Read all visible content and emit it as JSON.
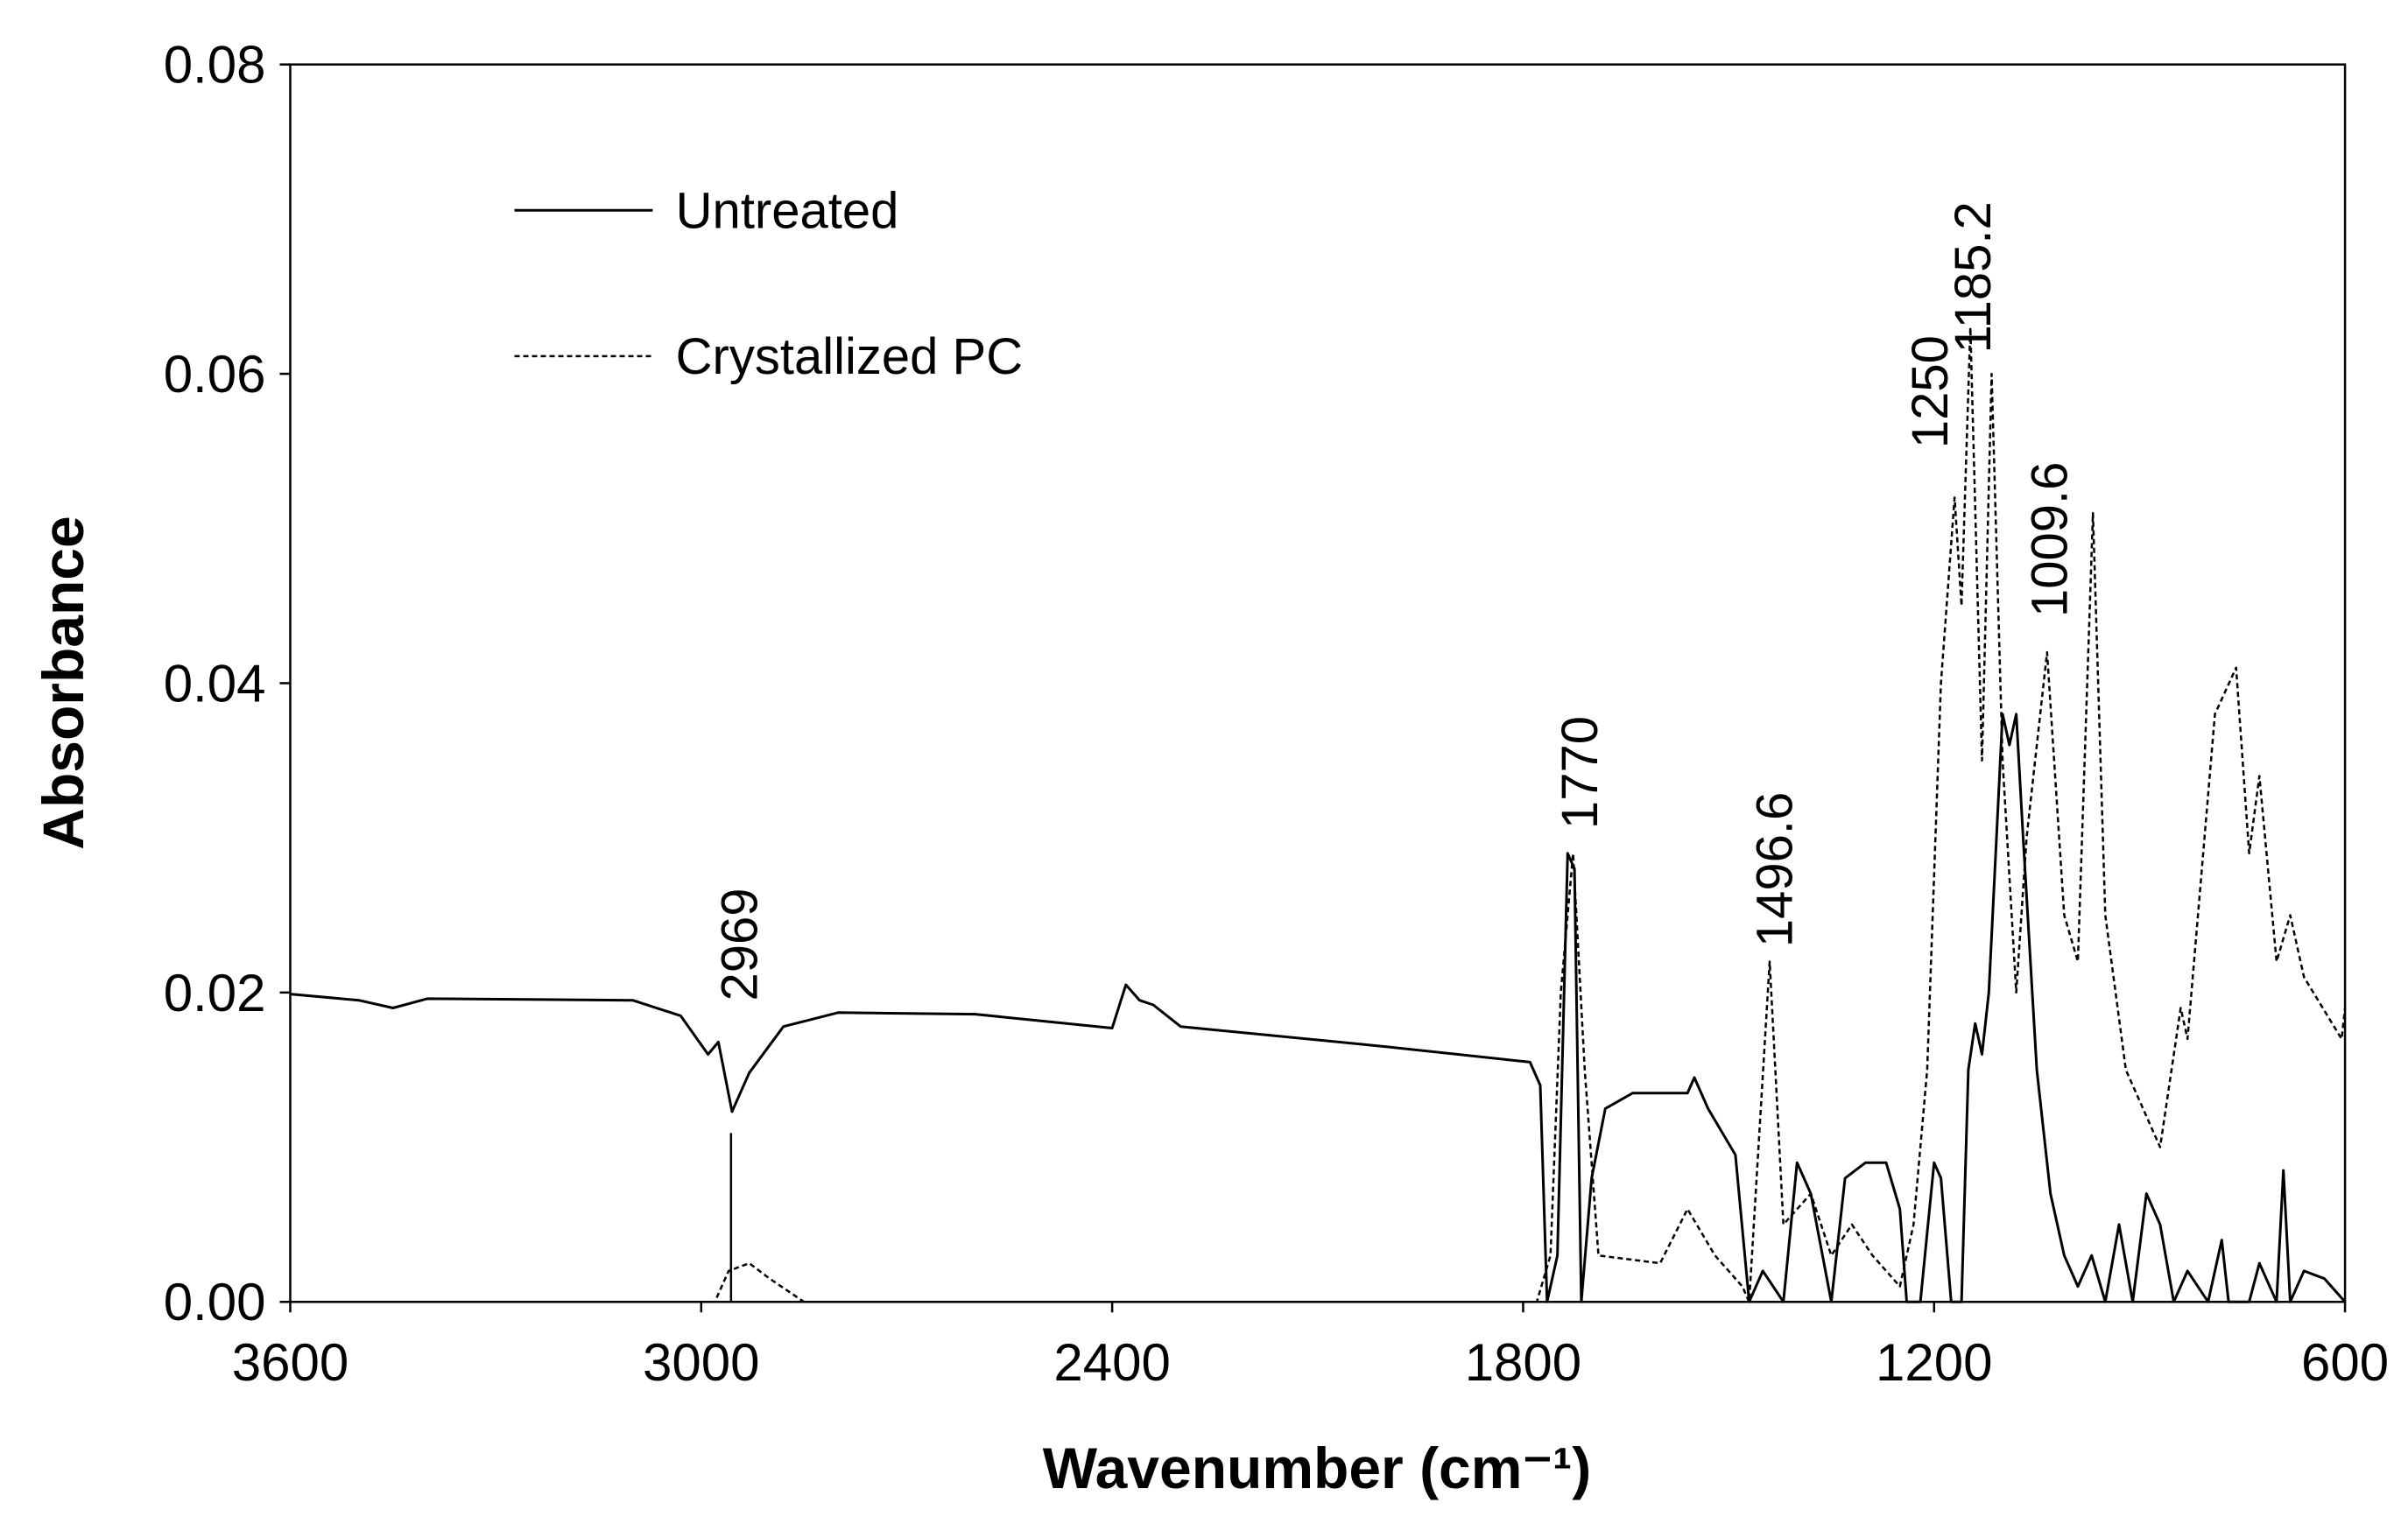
{
  "chart_data": {
    "type": "line",
    "xlabel": "Wavenumber (cm⁻¹)",
    "ylabel": "Absorbance",
    "xlim": [
      3600,
      600
    ],
    "ylim": [
      0,
      0.08
    ],
    "xticks": [
      3600,
      3000,
      2400,
      1800,
      1200,
      600
    ],
    "yticks": [
      {
        "value": 0,
        "label": "0.00"
      },
      {
        "value": 0.02,
        "label": "0.02"
      },
      {
        "value": 0.04,
        "label": "0.04"
      },
      {
        "value": 0.06,
        "label": "0.06"
      },
      {
        "value": 0.08,
        "label": "0.08"
      }
    ],
    "legend": "upper left",
    "series": [
      {
        "name": "Untreated",
        "color": "#000000",
        "style": "solid",
        "x": [
          3600,
          3500,
          3450,
          3400,
          3100,
          3030,
          2990,
          2975,
          2955,
          2930,
          2880,
          2800,
          2600,
          2400,
          2380,
          2360,
          2340,
          2300,
          2000,
          1790,
          1775,
          1765,
          1750,
          1735,
          1725,
          1715,
          1700,
          1680,
          1640,
          1560,
          1550,
          1530,
          1490,
          1470,
          1450,
          1420,
          1400,
          1380,
          1350,
          1330,
          1300,
          1270,
          1250,
          1240,
          1220,
          1200,
          1190,
          1175,
          1160,
          1150,
          1140,
          1130,
          1120,
          1100,
          1090,
          1080,
          1070,
          1050,
          1030,
          1010,
          990,
          970,
          950,
          930,
          910,
          890,
          870,
          850,
          830,
          800,
          780,
          770,
          740,
          725,
          700,
          690,
          680,
          660,
          630,
          600
        ],
        "values": [
          0.0199,
          0.0195,
          0.019,
          0.0196,
          0.0195,
          0.0185,
          0.016,
          0.0168,
          0.0123,
          0.0148,
          0.0178,
          0.0187,
          0.0186,
          0.0177,
          0.0205,
          0.0195,
          0.0192,
          0.0178,
          0.0165,
          0.0155,
          0.014,
          0.0,
          0.003,
          0.029,
          0.028,
          0.0,
          0.008,
          0.0125,
          0.0135,
          0.0135,
          0.0145,
          0.0125,
          0.0095,
          0.0,
          0.002,
          0.0,
          0.009,
          0.007,
          0.0,
          0.008,
          0.009,
          0.009,
          0.006,
          0.0,
          0.0,
          0.009,
          0.008,
          0.0,
          0.0,
          0.015,
          0.018,
          0.016,
          0.02,
          0.038,
          0.036,
          0.038,
          0.03,
          0.015,
          0.007,
          0.003,
          0.001,
          0.003,
          0.0,
          0.005,
          0.0,
          0.007,
          0.005,
          0.0,
          0.002,
          0.0,
          0.004,
          0.0,
          0.0,
          0.0025,
          0.0,
          0.0085,
          0.0,
          0.002,
          0.0015,
          0.0
        ]
      },
      {
        "name": "Crystallized PC",
        "color": "#000000",
        "style": "dashed",
        "x": [
          3600,
          2980,
          2960,
          2930,
          2900,
          2850,
          1780,
          1760,
          1745,
          1727,
          1710,
          1690,
          1600,
          1560,
          1520,
          1480,
          1470,
          1440,
          1420,
          1380,
          1350,
          1320,
          1290,
          1250,
          1230,
          1210,
          1190,
          1170,
          1160,
          1147,
          1130,
          1116,
          1100,
          1080,
          1065,
          1035,
          1010,
          990,
          968,
          950,
          920,
          870,
          840,
          830,
          790,
          759,
          740,
          725,
          700,
          680,
          660,
          605,
          600
        ],
        "values": [
          0.0,
          0.0,
          0.002,
          0.0025,
          0.0015,
          0.0,
          0.0,
          0.003,
          0.02,
          0.029,
          0.015,
          0.003,
          0.0025,
          0.006,
          0.003,
          0.001,
          0.0,
          0.022,
          0.005,
          0.007,
          0.003,
          0.005,
          0.003,
          0.001,
          0.005,
          0.015,
          0.04,
          0.052,
          0.045,
          0.063,
          0.035,
          0.06,
          0.035,
          0.02,
          0.03,
          0.042,
          0.025,
          0.022,
          0.051,
          0.025,
          0.015,
          0.01,
          0.019,
          0.017,
          0.038,
          0.041,
          0.029,
          0.034,
          0.022,
          0.025,
          0.021,
          0.017,
          0.019
        ]
      }
    ],
    "annotations": [
      "2969",
      "1770",
      "1496.6",
      "1250",
      "1185.2",
      "1009.6"
    ]
  }
}
